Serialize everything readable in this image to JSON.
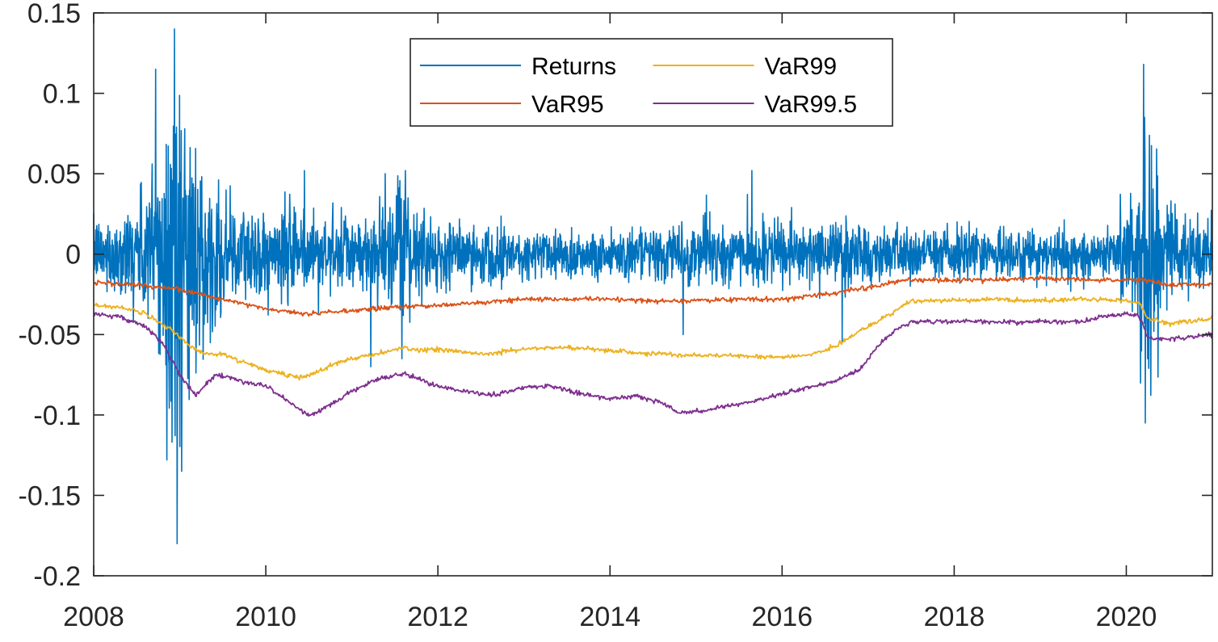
{
  "chart_data": {
    "type": "line",
    "title": "",
    "xlabel": "",
    "ylabel": "",
    "xlim": [
      2008.0,
      2021.0
    ],
    "ylim": [
      -0.2,
      0.15
    ],
    "xticks": [
      {
        "value": 2008,
        "label": "2008"
      },
      {
        "value": 2010,
        "label": "2010"
      },
      {
        "value": 2012,
        "label": "2012"
      },
      {
        "value": 2014,
        "label": "2014"
      },
      {
        "value": 2016,
        "label": "2016"
      },
      {
        "value": 2018,
        "label": "2018"
      },
      {
        "value": 2020,
        "label": "2020"
      }
    ],
    "yticks": [
      {
        "value": 0.15,
        "label": "0.15"
      },
      {
        "value": 0.1,
        "label": "0.1"
      },
      {
        "value": 0.05,
        "label": "0.05"
      },
      {
        "value": 0,
        "label": "0"
      },
      {
        "value": -0.05,
        "label": "-0.05"
      },
      {
        "value": -0.1,
        "label": "-0.1"
      },
      {
        "value": -0.15,
        "label": "-0.15"
      },
      {
        "value": -0.2,
        "label": "-0.2"
      }
    ],
    "grid": false,
    "legend": {
      "position": "top-center",
      "columns": 2
    },
    "series": [
      {
        "name": "Returns",
        "color": "#0072BD",
        "style": "daily-returns",
        "x": [
          2008.0,
          2008.3,
          2008.6,
          2008.75,
          2008.85,
          2008.9,
          2008.95,
          2009.0,
          2009.1,
          2009.2,
          2009.3,
          2009.5,
          2009.8,
          2010.0,
          2010.4,
          2010.7,
          2011.0,
          2011.2,
          2011.5,
          2011.6,
          2011.7,
          2012.0,
          2012.5,
          2013.0,
          2013.5,
          2014.0,
          2014.5,
          2015.0,
          2015.5,
          2016.0,
          2016.5,
          2016.7,
          2017.0,
          2017.5,
          2018.0,
          2018.5,
          2019.0,
          2019.5,
          2019.9,
          2020.1,
          2020.2,
          2020.3,
          2020.5,
          2020.8,
          2021.0
        ],
        "y": [
          0.018,
          0.025,
          0.04,
          0.08,
          0.095,
          0.12,
          0.115,
          0.1,
          0.08,
          0.06,
          0.045,
          0.035,
          0.03,
          0.025,
          0.03,
          0.022,
          0.02,
          0.025,
          0.035,
          0.04,
          0.03,
          0.02,
          0.018,
          0.016,
          0.016,
          0.015,
          0.015,
          0.018,
          0.018,
          0.018,
          0.02,
          0.022,
          0.016,
          0.015,
          0.016,
          0.015,
          0.016,
          0.016,
          0.016,
          0.05,
          0.08,
          0.06,
          0.03,
          0.022,
          0.02
        ],
        "extremes": [
          {
            "x": 2008.94,
            "y": 0.14
          },
          {
            "x": 2008.97,
            "y": -0.18
          },
          {
            "x": 2009.02,
            "y": -0.135
          },
          {
            "x": 2008.72,
            "y": 0.115
          },
          {
            "x": 2008.85,
            "y": -0.128
          },
          {
            "x": 2011.62,
            "y": 0.052
          },
          {
            "x": 2011.58,
            "y": -0.065
          },
          {
            "x": 2011.22,
            "y": -0.07
          },
          {
            "x": 2010.45,
            "y": 0.052
          },
          {
            "x": 2015.65,
            "y": 0.052
          },
          {
            "x": 2014.85,
            "y": -0.05
          },
          {
            "x": 2016.7,
            "y": -0.055
          },
          {
            "x": 2020.2,
            "y": 0.118
          },
          {
            "x": 2020.22,
            "y": -0.105
          },
          {
            "x": 2020.25,
            "y": -0.065
          }
        ]
      },
      {
        "name": "VaR95",
        "color": "#D95319",
        "x": [
          2008.0,
          2008.5,
          2009.0,
          2009.5,
          2010.0,
          2010.5,
          2011.0,
          2011.5,
          2012.0,
          2012.5,
          2013.0,
          2013.5,
          2014.0,
          2014.5,
          2015.0,
          2015.5,
          2016.0,
          2016.5,
          2017.0,
          2017.3,
          2017.5,
          2018.0,
          2018.5,
          2019.0,
          2019.5,
          2020.0,
          2020.2,
          2020.5,
          2021.0
        ],
        "y": [
          -0.018,
          -0.019,
          -0.022,
          -0.028,
          -0.034,
          -0.037,
          -0.035,
          -0.033,
          -0.032,
          -0.03,
          -0.028,
          -0.028,
          -0.028,
          -0.029,
          -0.029,
          -0.028,
          -0.028,
          -0.025,
          -0.021,
          -0.017,
          -0.016,
          -0.016,
          -0.016,
          -0.015,
          -0.016,
          -0.016,
          -0.016,
          -0.019,
          -0.019
        ]
      },
      {
        "name": "VaR99",
        "color": "#EDB120",
        "x": [
          2008.0,
          2008.3,
          2008.6,
          2008.9,
          2009.1,
          2009.3,
          2009.5,
          2009.8,
          2010.0,
          2010.3,
          2010.5,
          2010.8,
          2011.0,
          2011.3,
          2011.6,
          2011.8,
          2012.0,
          2012.5,
          2013.0,
          2013.5,
          2014.0,
          2014.5,
          2015.0,
          2015.5,
          2016.0,
          2016.3,
          2016.6,
          2016.9,
          2017.1,
          2017.3,
          2017.5,
          2018.0,
          2018.5,
          2019.0,
          2019.5,
          2020.0,
          2020.15,
          2020.25,
          2020.5,
          2021.0
        ],
        "y": [
          -0.032,
          -0.033,
          -0.037,
          -0.047,
          -0.057,
          -0.062,
          -0.062,
          -0.068,
          -0.072,
          -0.076,
          -0.076,
          -0.068,
          -0.065,
          -0.062,
          -0.058,
          -0.06,
          -0.059,
          -0.062,
          -0.059,
          -0.058,
          -0.06,
          -0.062,
          -0.063,
          -0.063,
          -0.064,
          -0.063,
          -0.058,
          -0.048,
          -0.042,
          -0.036,
          -0.029,
          -0.029,
          -0.028,
          -0.029,
          -0.028,
          -0.029,
          -0.03,
          -0.04,
          -0.043,
          -0.04
        ]
      },
      {
        "name": "VaR99.5",
        "color": "#7E2F8E",
        "x": [
          2008.0,
          2008.3,
          2008.6,
          2008.8,
          2009.0,
          2009.2,
          2009.4,
          2009.6,
          2009.8,
          2010.0,
          2010.3,
          2010.5,
          2010.8,
          2011.0,
          2011.3,
          2011.6,
          2011.8,
          2012.0,
          2012.3,
          2012.6,
          2013.0,
          2013.3,
          2013.6,
          2014.0,
          2014.3,
          2014.6,
          2014.8,
          2015.0,
          2015.3,
          2015.6,
          2016.0,
          2016.3,
          2016.6,
          2016.9,
          2017.1,
          2017.3,
          2017.5,
          2018.0,
          2018.5,
          2019.0,
          2019.5,
          2019.8,
          2020.0,
          2020.15,
          2020.25,
          2020.5,
          2021.0
        ],
        "y": [
          -0.037,
          -0.039,
          -0.045,
          -0.055,
          -0.075,
          -0.088,
          -0.075,
          -0.077,
          -0.08,
          -0.082,
          -0.093,
          -0.101,
          -0.092,
          -0.085,
          -0.078,
          -0.074,
          -0.078,
          -0.082,
          -0.085,
          -0.088,
          -0.083,
          -0.082,
          -0.086,
          -0.09,
          -0.088,
          -0.092,
          -0.099,
          -0.098,
          -0.095,
          -0.092,
          -0.087,
          -0.083,
          -0.079,
          -0.072,
          -0.058,
          -0.048,
          -0.042,
          -0.042,
          -0.042,
          -0.042,
          -0.042,
          -0.038,
          -0.037,
          -0.038,
          -0.052,
          -0.053,
          -0.05
        ]
      }
    ]
  }
}
